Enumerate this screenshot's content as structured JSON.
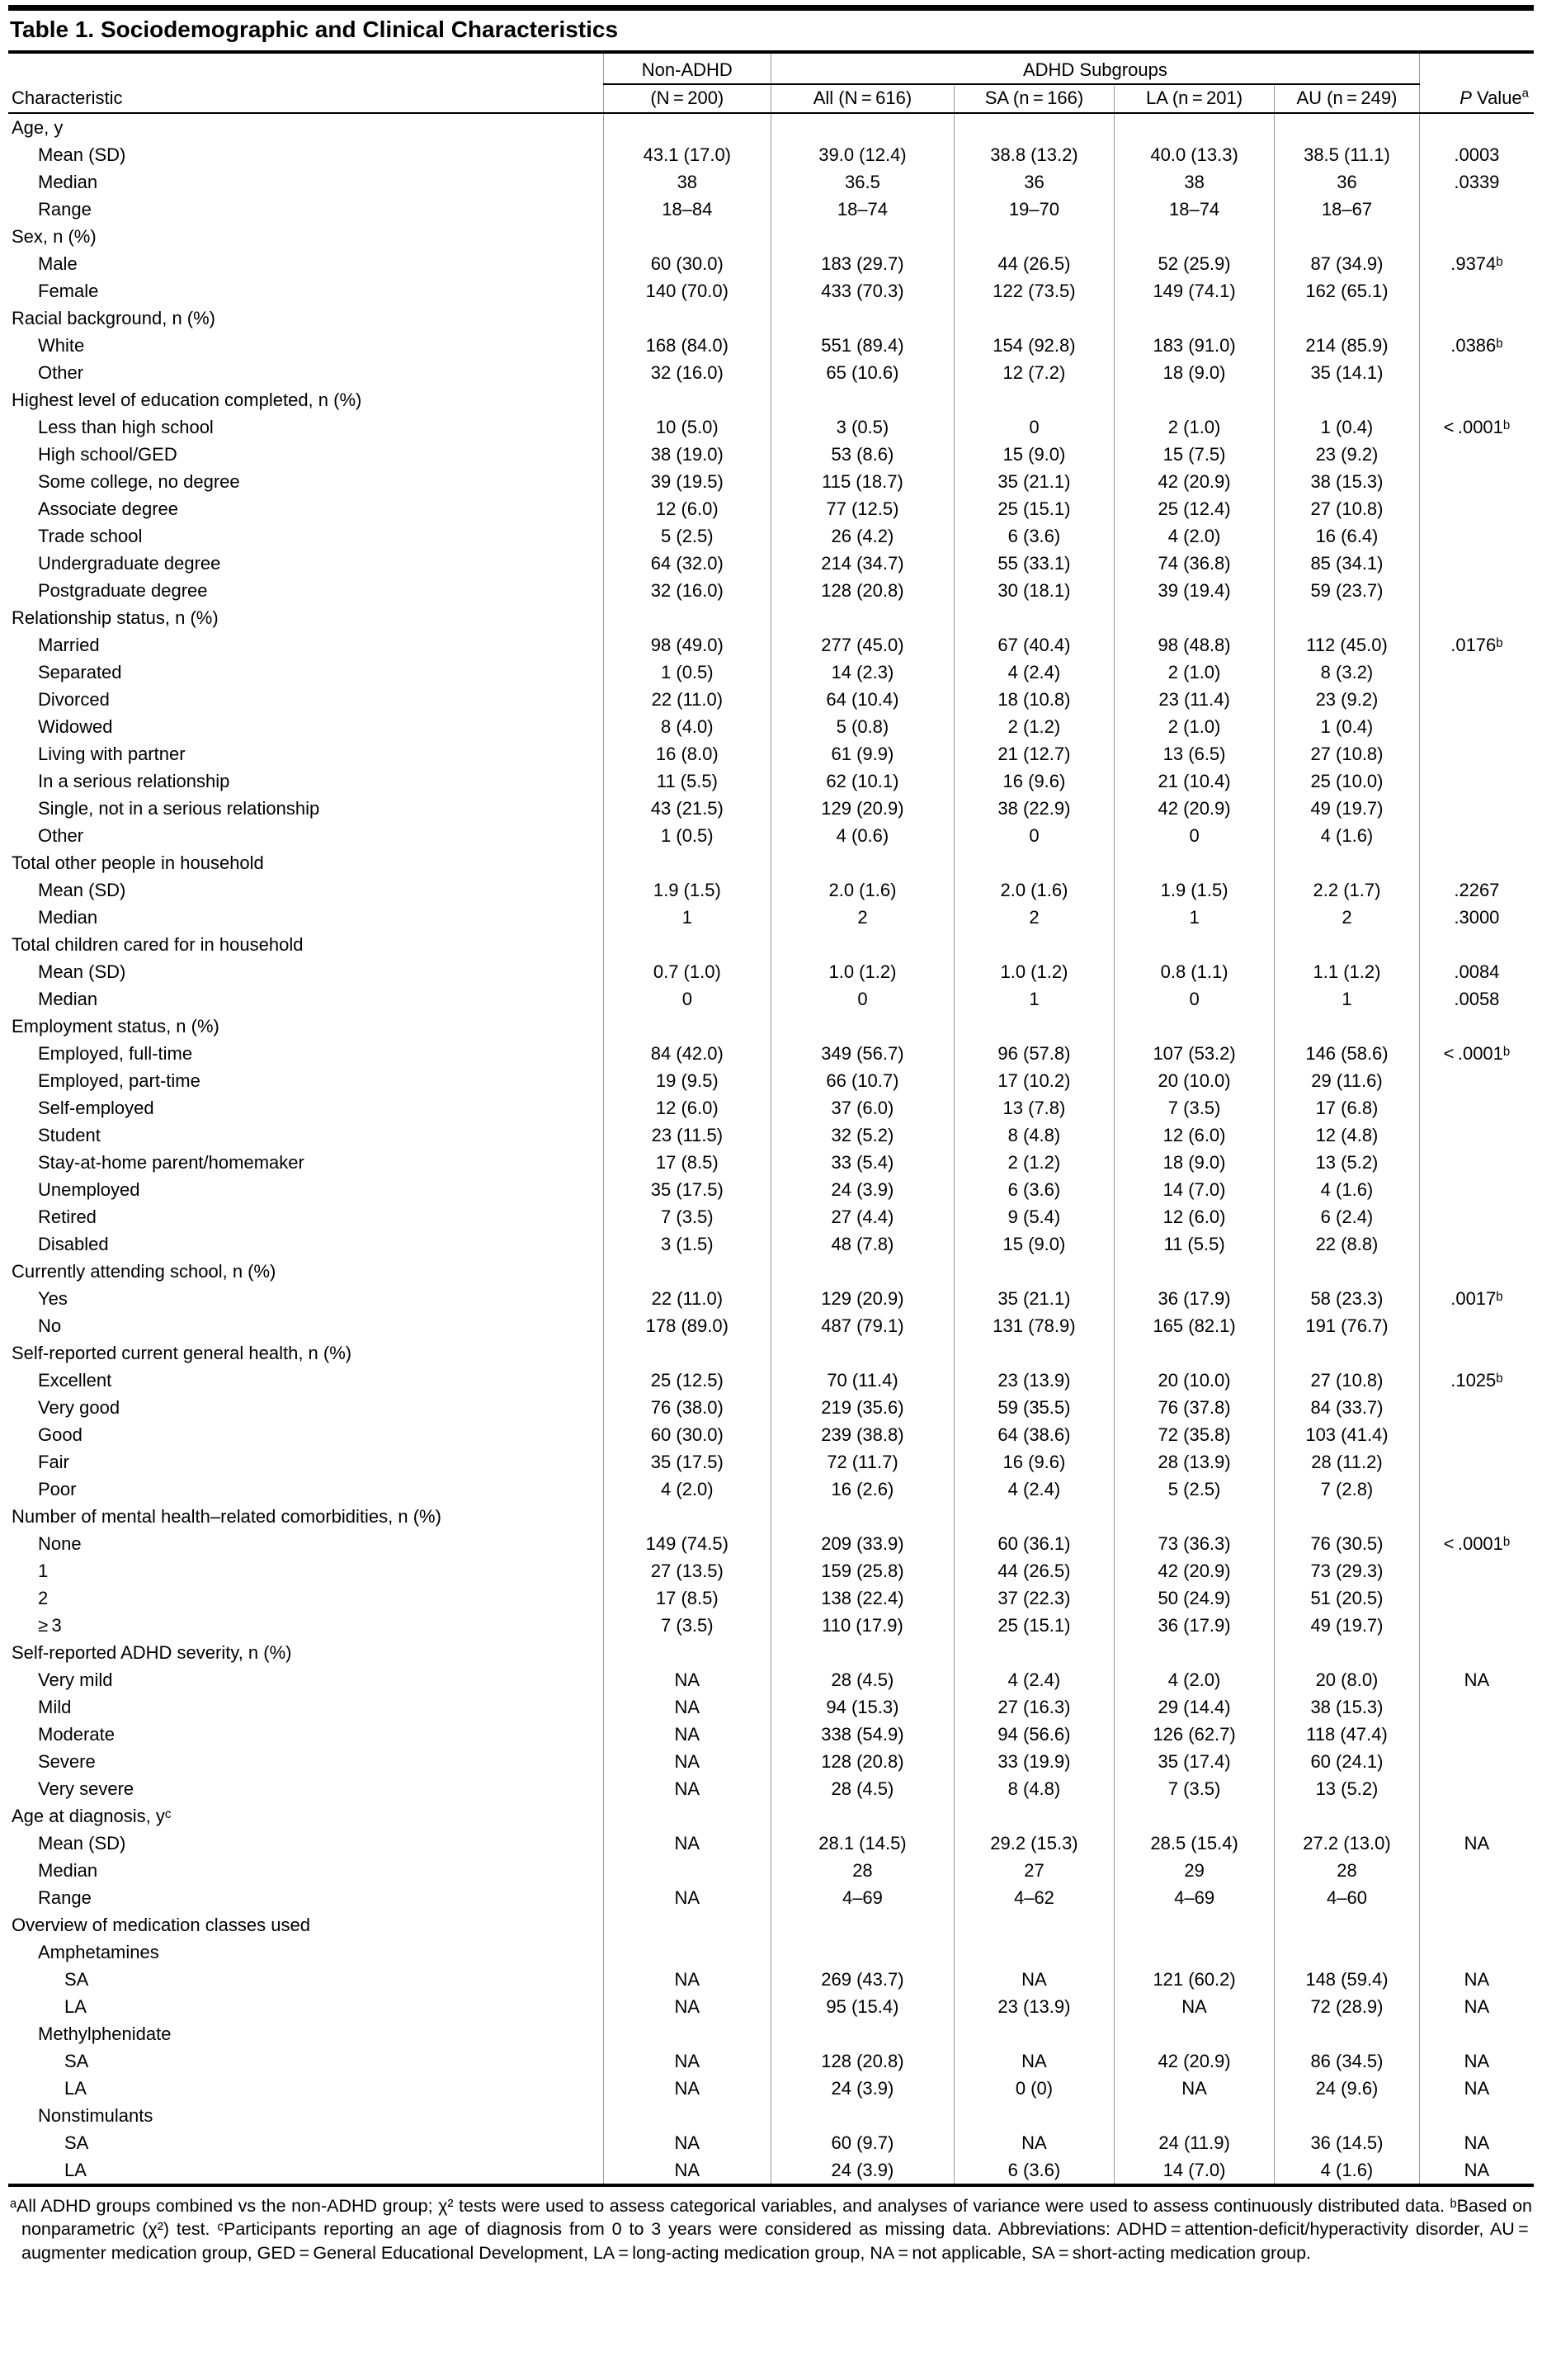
{
  "title": "Table 1. Sociodemographic and Clinical Characteristics",
  "header": {
    "characteristic": "Characteristic",
    "non_adhd_label": "Non-ADHD",
    "non_adhd_n": "(N = 200)",
    "group_label": "ADHD Subgroups",
    "subgroups": [
      "All (N = 616)",
      "SA (n = 166)",
      "LA (n = 201)",
      "AU (n = 249)"
    ],
    "p_italic": "P",
    "p_rest": " Value",
    "p_sup": "a"
  },
  "rows": [
    {
      "t": "section",
      "label": "Age, y"
    },
    {
      "t": "data",
      "label": "Mean (SD)",
      "c": [
        "43.1 (17.0)",
        "39.0 (12.4)",
        "38.8 (13.2)",
        "40.0 (13.3)",
        "38.5 (11.1)",
        ".0003"
      ]
    },
    {
      "t": "data",
      "label": "Median",
      "c": [
        "38",
        "36.5",
        "36",
        "38",
        "36",
        ".0339"
      ]
    },
    {
      "t": "data",
      "label": "Range",
      "c": [
        "18–84",
        "18–74",
        "19–70",
        "18–74",
        "18–67",
        ""
      ]
    },
    {
      "t": "section",
      "label": "Sex, n (%)"
    },
    {
      "t": "data",
      "label": "Male",
      "c": [
        "60 (30.0)",
        "183 (29.7)",
        "44 (26.5)",
        "52 (25.9)",
        "87 (34.9)",
        ".9374ᵇ"
      ]
    },
    {
      "t": "data",
      "label": "Female",
      "c": [
        "140 (70.0)",
        "433 (70.3)",
        "122 (73.5)",
        "149 (74.1)",
        "162 (65.1)",
        ""
      ]
    },
    {
      "t": "section",
      "label": "Racial background, n (%)"
    },
    {
      "t": "data",
      "label": "White",
      "c": [
        "168 (84.0)",
        "551 (89.4)",
        "154 (92.8)",
        "183 (91.0)",
        "214 (85.9)",
        ".0386ᵇ"
      ]
    },
    {
      "t": "data",
      "label": "Other",
      "c": [
        "32 (16.0)",
        "65 (10.6)",
        "12 (7.2)",
        "18 (9.0)",
        "35 (14.1)",
        ""
      ]
    },
    {
      "t": "section",
      "label": "Highest level of education completed, n (%)"
    },
    {
      "t": "data",
      "label": "Less than high school",
      "c": [
        "10 (5.0)",
        "3 (0.5)",
        "0",
        "2 (1.0)",
        "1 (0.4)",
        "< .0001ᵇ"
      ]
    },
    {
      "t": "data",
      "label": "High school/GED",
      "c": [
        "38 (19.0)",
        "53 (8.6)",
        "15 (9.0)",
        "15 (7.5)",
        "23 (9.2)",
        ""
      ]
    },
    {
      "t": "data",
      "label": "Some college, no degree",
      "c": [
        "39 (19.5)",
        "115 (18.7)",
        "35 (21.1)",
        "42 (20.9)",
        "38 (15.3)",
        ""
      ]
    },
    {
      "t": "data",
      "label": "Associate degree",
      "c": [
        "12 (6.0)",
        "77 (12.5)",
        "25 (15.1)",
        "25 (12.4)",
        "27 (10.8)",
        ""
      ]
    },
    {
      "t": "data",
      "label": "Trade school",
      "c": [
        "5 (2.5)",
        "26 (4.2)",
        "6 (3.6)",
        "4 (2.0)",
        "16 (6.4)",
        ""
      ]
    },
    {
      "t": "data",
      "label": "Undergraduate degree",
      "c": [
        "64 (32.0)",
        "214 (34.7)",
        "55 (33.1)",
        "74 (36.8)",
        "85 (34.1)",
        ""
      ]
    },
    {
      "t": "data",
      "label": "Postgraduate degree",
      "c": [
        "32 (16.0)",
        "128 (20.8)",
        "30 (18.1)",
        "39 (19.4)",
        "59 (23.7)",
        ""
      ]
    },
    {
      "t": "section",
      "label": "Relationship status, n (%)"
    },
    {
      "t": "data",
      "label": "Married",
      "c": [
        "98 (49.0)",
        "277 (45.0)",
        "67 (40.4)",
        "98 (48.8)",
        "112 (45.0)",
        ".0176ᵇ"
      ]
    },
    {
      "t": "data",
      "label": "Separated",
      "c": [
        "1 (0.5)",
        "14 (2.3)",
        "4 (2.4)",
        "2 (1.0)",
        "8 (3.2)",
        ""
      ]
    },
    {
      "t": "data",
      "label": "Divorced",
      "c": [
        "22 (11.0)",
        "64 (10.4)",
        "18 (10.8)",
        "23 (11.4)",
        "23 (9.2)",
        ""
      ]
    },
    {
      "t": "data",
      "label": "Widowed",
      "c": [
        "8 (4.0)",
        "5 (0.8)",
        "2 (1.2)",
        "2 (1.0)",
        "1 (0.4)",
        ""
      ]
    },
    {
      "t": "data",
      "label": "Living with partner",
      "c": [
        "16 (8.0)",
        "61 (9.9)",
        "21 (12.7)",
        "13 (6.5)",
        "27 (10.8)",
        ""
      ]
    },
    {
      "t": "data",
      "label": "In a serious relationship",
      "c": [
        "11 (5.5)",
        "62 (10.1)",
        "16 (9.6)",
        "21 (10.4)",
        "25 (10.0)",
        ""
      ]
    },
    {
      "t": "data",
      "label": "Single, not in a serious relationship",
      "c": [
        "43 (21.5)",
        "129 (20.9)",
        "38 (22.9)",
        "42 (20.9)",
        "49 (19.7)",
        ""
      ]
    },
    {
      "t": "data",
      "label": "Other",
      "c": [
        "1 (0.5)",
        "4 (0.6)",
        "0",
        "0",
        "4 (1.6)",
        ""
      ]
    },
    {
      "t": "section",
      "label": "Total other people in household"
    },
    {
      "t": "data",
      "label": "Mean (SD)",
      "c": [
        "1.9 (1.5)",
        "2.0 (1.6)",
        "2.0 (1.6)",
        "1.9 (1.5)",
        "2.2 (1.7)",
        ".2267"
      ]
    },
    {
      "t": "data",
      "label": "Median",
      "c": [
        "1",
        "2",
        "2",
        "1",
        "2",
        ".3000"
      ]
    },
    {
      "t": "section",
      "label": "Total children cared for in household"
    },
    {
      "t": "data",
      "label": "Mean (SD)",
      "c": [
        "0.7 (1.0)",
        "1.0 (1.2)",
        "1.0 (1.2)",
        "0.8 (1.1)",
        "1.1 (1.2)",
        ".0084"
      ]
    },
    {
      "t": "data",
      "label": "Median",
      "c": [
        "0",
        "0",
        "1",
        "0",
        "1",
        ".0058"
      ]
    },
    {
      "t": "section",
      "label": "Employment status, n (%)"
    },
    {
      "t": "data",
      "label": "Employed, full-time",
      "c": [
        "84 (42.0)",
        "349 (56.7)",
        "96 (57.8)",
        "107 (53.2)",
        "146 (58.6)",
        "< .0001ᵇ"
      ]
    },
    {
      "t": "data",
      "label": "Employed, part-time",
      "c": [
        "19 (9.5)",
        "66 (10.7)",
        "17 (10.2)",
        "20 (10.0)",
        "29 (11.6)",
        ""
      ]
    },
    {
      "t": "data",
      "label": "Self-employed",
      "c": [
        "12 (6.0)",
        "37 (6.0)",
        "13 (7.8)",
        "7 (3.5)",
        "17 (6.8)",
        ""
      ]
    },
    {
      "t": "data",
      "label": "Student",
      "c": [
        "23 (11.5)",
        "32 (5.2)",
        "8 (4.8)",
        "12 (6.0)",
        "12 (4.8)",
        ""
      ]
    },
    {
      "t": "data",
      "label": "Stay-at-home parent/homemaker",
      "c": [
        "17 (8.5)",
        "33 (5.4)",
        "2 (1.2)",
        "18 (9.0)",
        "13 (5.2)",
        ""
      ]
    },
    {
      "t": "data",
      "label": "Unemployed",
      "c": [
        "35 (17.5)",
        "24 (3.9)",
        "6 (3.6)",
        "14 (7.0)",
        "4 (1.6)",
        ""
      ]
    },
    {
      "t": "data",
      "label": "Retired",
      "c": [
        "7 (3.5)",
        "27 (4.4)",
        "9 (5.4)",
        "12 (6.0)",
        "6 (2.4)",
        ""
      ]
    },
    {
      "t": "data",
      "label": "Disabled",
      "c": [
        "3 (1.5)",
        "48 (7.8)",
        "15 (9.0)",
        "11 (5.5)",
        "22 (8.8)",
        ""
      ]
    },
    {
      "t": "section",
      "label": "Currently attending school, n (%)"
    },
    {
      "t": "data",
      "label": "Yes",
      "c": [
        "22 (11.0)",
        "129 (20.9)",
        "35 (21.1)",
        "36 (17.9)",
        "58 (23.3)",
        ".0017ᵇ"
      ]
    },
    {
      "t": "data",
      "label": "No",
      "c": [
        "178 (89.0)",
        "487 (79.1)",
        "131 (78.9)",
        "165 (82.1)",
        "191 (76.7)",
        ""
      ]
    },
    {
      "t": "section",
      "label": "Self-reported current general health, n (%)"
    },
    {
      "t": "data",
      "label": "Excellent",
      "c": [
        "25 (12.5)",
        "70 (11.4)",
        "23 (13.9)",
        "20 (10.0)",
        "27 (10.8)",
        ".1025ᵇ"
      ]
    },
    {
      "t": "data",
      "label": "Very good",
      "c": [
        "76 (38.0)",
        "219 (35.6)",
        "59 (35.5)",
        "76 (37.8)",
        "84 (33.7)",
        ""
      ]
    },
    {
      "t": "data",
      "label": "Good",
      "c": [
        "60 (30.0)",
        "239 (38.8)",
        "64 (38.6)",
        "72 (35.8)",
        "103 (41.4)",
        ""
      ]
    },
    {
      "t": "data",
      "label": "Fair",
      "c": [
        "35 (17.5)",
        "72 (11.7)",
        "16 (9.6)",
        "28 (13.9)",
        "28 (11.2)",
        ""
      ]
    },
    {
      "t": "data",
      "label": "Poor",
      "c": [
        "4 (2.0)",
        "16 (2.6)",
        "4 (2.4)",
        "5 (2.5)",
        "7 (2.8)",
        ""
      ]
    },
    {
      "t": "section",
      "label": "Number of mental health–related comorbidities, n (%)"
    },
    {
      "t": "data",
      "label": "None",
      "c": [
        "149 (74.5)",
        "209 (33.9)",
        "60 (36.1)",
        "73 (36.3)",
        "76 (30.5)",
        "< .0001ᵇ"
      ]
    },
    {
      "t": "data",
      "label": "1",
      "c": [
        "27 (13.5)",
        "159 (25.8)",
        "44 (26.5)",
        "42 (20.9)",
        "73 (29.3)",
        ""
      ]
    },
    {
      "t": "data",
      "label": "2",
      "c": [
        "17 (8.5)",
        "138 (22.4)",
        "37 (22.3)",
        "50 (24.9)",
        "51 (20.5)",
        ""
      ]
    },
    {
      "t": "data",
      "label": "≥ 3",
      "c": [
        "7 (3.5)",
        "110 (17.9)",
        "25 (15.1)",
        "36 (17.9)",
        "49 (19.7)",
        ""
      ]
    },
    {
      "t": "section",
      "label": "Self-reported ADHD severity, n (%)"
    },
    {
      "t": "data",
      "label": "Very mild",
      "c": [
        "NA",
        "28 (4.5)",
        "4 (2.4)",
        "4 (2.0)",
        "20 (8.0)",
        "NA"
      ]
    },
    {
      "t": "data",
      "label": "Mild",
      "c": [
        "NA",
        "94 (15.3)",
        "27 (16.3)",
        "29 (14.4)",
        "38 (15.3)",
        ""
      ]
    },
    {
      "t": "data",
      "label": "Moderate",
      "c": [
        "NA",
        "338 (54.9)",
        "94 (56.6)",
        "126 (62.7)",
        "118 (47.4)",
        ""
      ]
    },
    {
      "t": "data",
      "label": "Severe",
      "c": [
        "NA",
        "128 (20.8)",
        "33 (19.9)",
        "35 (17.4)",
        "60 (24.1)",
        ""
      ]
    },
    {
      "t": "data",
      "label": "Very severe",
      "c": [
        "NA",
        "28 (4.5)",
        "8 (4.8)",
        "7 (3.5)",
        "13 (5.2)",
        ""
      ]
    },
    {
      "t": "section",
      "label": "Age at diagnosis, yᶜ"
    },
    {
      "t": "data",
      "label": "Mean (SD)",
      "c": [
        "NA",
        "28.1 (14.5)",
        "29.2 (15.3)",
        "28.5 (15.4)",
        "27.2 (13.0)",
        "NA"
      ]
    },
    {
      "t": "data",
      "label": "Median",
      "c": [
        "",
        "28",
        "27",
        "29",
        "28",
        ""
      ]
    },
    {
      "t": "data",
      "label": "Range",
      "c": [
        "NA",
        "4–69",
        "4–62",
        "4–69",
        "4–60",
        ""
      ]
    },
    {
      "t": "section",
      "label": "Overview of medication classes used"
    },
    {
      "t": "sub",
      "label": "Amphetamines"
    },
    {
      "t": "data2",
      "label": "SA",
      "c": [
        "NA",
        "269 (43.7)",
        "NA",
        "121 (60.2)",
        "148 (59.4)",
        "NA"
      ]
    },
    {
      "t": "data2",
      "label": "LA",
      "c": [
        "NA",
        "95 (15.4)",
        "23 (13.9)",
        "NA",
        "72 (28.9)",
        "NA"
      ]
    },
    {
      "t": "sub",
      "label": "Methylphenidate"
    },
    {
      "t": "data2",
      "label": "SA",
      "c": [
        "NA",
        "128 (20.8)",
        "NA",
        "42 (20.9)",
        "86 (34.5)",
        "NA"
      ]
    },
    {
      "t": "data2",
      "label": "LA",
      "c": [
        "NA",
        "24 (3.9)",
        "0 (0)",
        "NA",
        "24 (9.6)",
        "NA"
      ]
    },
    {
      "t": "sub",
      "label": "Nonstimulants"
    },
    {
      "t": "data2",
      "label": "SA",
      "c": [
        "NA",
        "60 (9.7)",
        "NA",
        "24 (11.9)",
        "36 (14.5)",
        "NA"
      ]
    },
    {
      "t": "data2",
      "label": "LA",
      "c": [
        "NA",
        "24 (3.9)",
        "6 (3.6)",
        "14 (7.0)",
        "4 (1.6)",
        "NA"
      ]
    }
  ],
  "footnote": "ᵃAll ADHD groups combined vs the non-ADHD group; χ² tests were used to assess categorical variables, and analyses of variance were used to assess continuously distributed data.  ᵇBased on nonparametric (χ²) test.  ᶜParticipants reporting an age of diagnosis from 0 to 3 years were considered as missing data.  Abbreviations: ADHD = attention-deficit/hyperactivity disorder, AU = augmenter medication group, GED = General Educational Development, LA = long-acting medication group, NA = not applicable, SA = short-acting medication group."
}
